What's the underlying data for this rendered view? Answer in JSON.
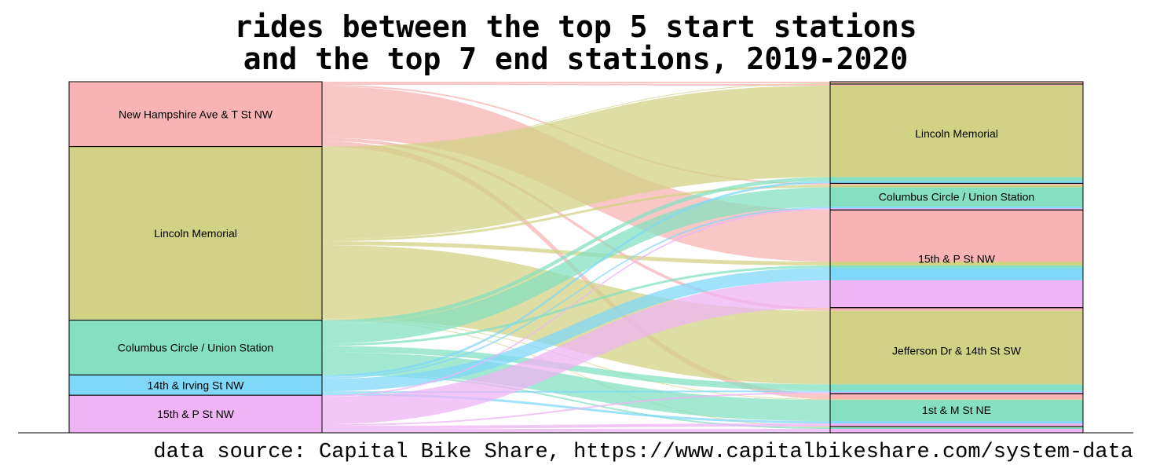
{
  "chart_data": {
    "type": "sankey",
    "title": [
      "rides between the top 5 start stations",
      "and the top 7 end stations, 2019-2020"
    ],
    "caption": "data source: Capital Bike Share, https://www.capitalbikeshare.com/system-data",
    "sources": [
      {
        "name": "New Hampshire Ave & T St NW",
        "color": "#f8b4b4"
      },
      {
        "name": "Lincoln Memorial",
        "color": "#d1d285"
      },
      {
        "name": "Columbus Circle / Union Station",
        "color": "#84e0c0"
      },
      {
        "name": "14th & Irving St NW",
        "color": "#80d8f8"
      },
      {
        "name": "15th & P St NW",
        "color": "#eeb4f4"
      }
    ],
    "targets": [
      {
        "name": "",
        "color": "#f8b4b4"
      },
      {
        "name": "Lincoln Memorial",
        "color": "#d1d285"
      },
      {
        "name": "Columbus Circle / Union Station",
        "color": "#84e0c0"
      },
      {
        "name": "15th & P St NW",
        "color": "#eeb4f4"
      },
      {
        "name": "Jefferson Dr & 14th St SW",
        "color": "#d1d285"
      },
      {
        "name": "1st & M St NE",
        "color": "#84e0c0"
      },
      {
        "name": "",
        "color": "#eeb4f4"
      }
    ],
    "flows": [
      {
        "source": 0,
        "target": 0,
        "value": 2
      },
      {
        "source": 0,
        "target": 1,
        "value": 2
      },
      {
        "source": 0,
        "target": 2,
        "value": 2
      },
      {
        "source": 0,
        "target": 3,
        "value": 66
      },
      {
        "source": 0,
        "target": 4,
        "value": 4
      },
      {
        "source": 0,
        "target": 5,
        "value": 7
      },
      {
        "source": 1,
        "target": 0,
        "value": 1
      },
      {
        "source": 1,
        "target": 1,
        "value": 117
      },
      {
        "source": 1,
        "target": 2,
        "value": 3
      },
      {
        "source": 1,
        "target": 3,
        "value": 5
      },
      {
        "source": 1,
        "target": 4,
        "value": 94
      },
      {
        "source": 1,
        "target": 5,
        "value": 1
      },
      {
        "source": 1,
        "target": 6,
        "value": 1
      },
      {
        "source": 2,
        "target": 1,
        "value": 5
      },
      {
        "source": 2,
        "target": 2,
        "value": 25
      },
      {
        "source": 2,
        "target": 3,
        "value": 3
      },
      {
        "source": 2,
        "target": 4,
        "value": 8
      },
      {
        "source": 2,
        "target": 5,
        "value": 27
      },
      {
        "source": 2,
        "target": 6,
        "value": 2
      },
      {
        "source": 3,
        "target": 1,
        "value": 3
      },
      {
        "source": 3,
        "target": 2,
        "value": 2
      },
      {
        "source": 3,
        "target": 3,
        "value": 16
      },
      {
        "source": 3,
        "target": 4,
        "value": 2
      },
      {
        "source": 3,
        "target": 5,
        "value": 3
      },
      {
        "source": 4,
        "target": 2,
        "value": 2
      },
      {
        "source": 4,
        "target": 3,
        "value": 35
      },
      {
        "source": 4,
        "target": 4,
        "value": 2
      },
      {
        "source": 4,
        "target": 5,
        "value": 4
      },
      {
        "source": 4,
        "target": 6,
        "value": 5
      }
    ]
  }
}
